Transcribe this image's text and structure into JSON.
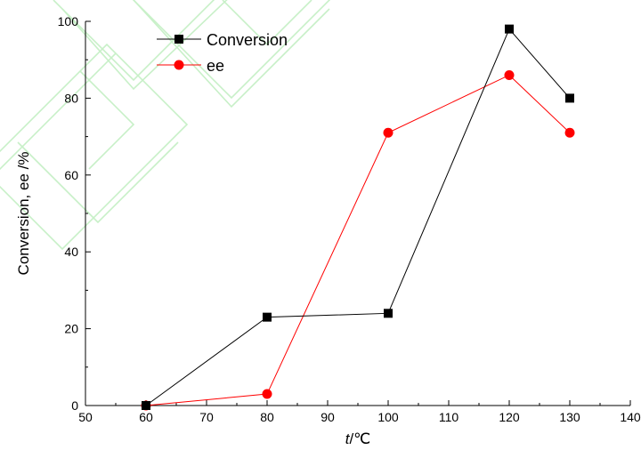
{
  "chart_data": {
    "type": "line",
    "xlabel": "t",
    "xlabel_unit": "/℃",
    "ylabel": "Conversion, ee /%",
    "xlim": [
      50,
      140
    ],
    "ylim": [
      0,
      100
    ],
    "x_ticks": [
      "50",
      "60",
      "70",
      "80",
      "90",
      "100",
      "110",
      "120",
      "130",
      "140"
    ],
    "y_ticks": [
      "0",
      "20",
      "40",
      "60",
      "80",
      "100"
    ],
    "grid": false,
    "legend": "top-left",
    "series": [
      {
        "name": "Conversion",
        "color": "#000000",
        "marker": "square",
        "x": [
          60,
          80,
          100,
          120,
          130
        ],
        "values": [
          0,
          23,
          24,
          98,
          80
        ]
      },
      {
        "name": "ee",
        "color": "#ff0000",
        "marker": "circle",
        "x": [
          60,
          80,
          100,
          120,
          130
        ],
        "values": [
          0,
          3,
          71,
          86,
          71
        ]
      }
    ]
  }
}
